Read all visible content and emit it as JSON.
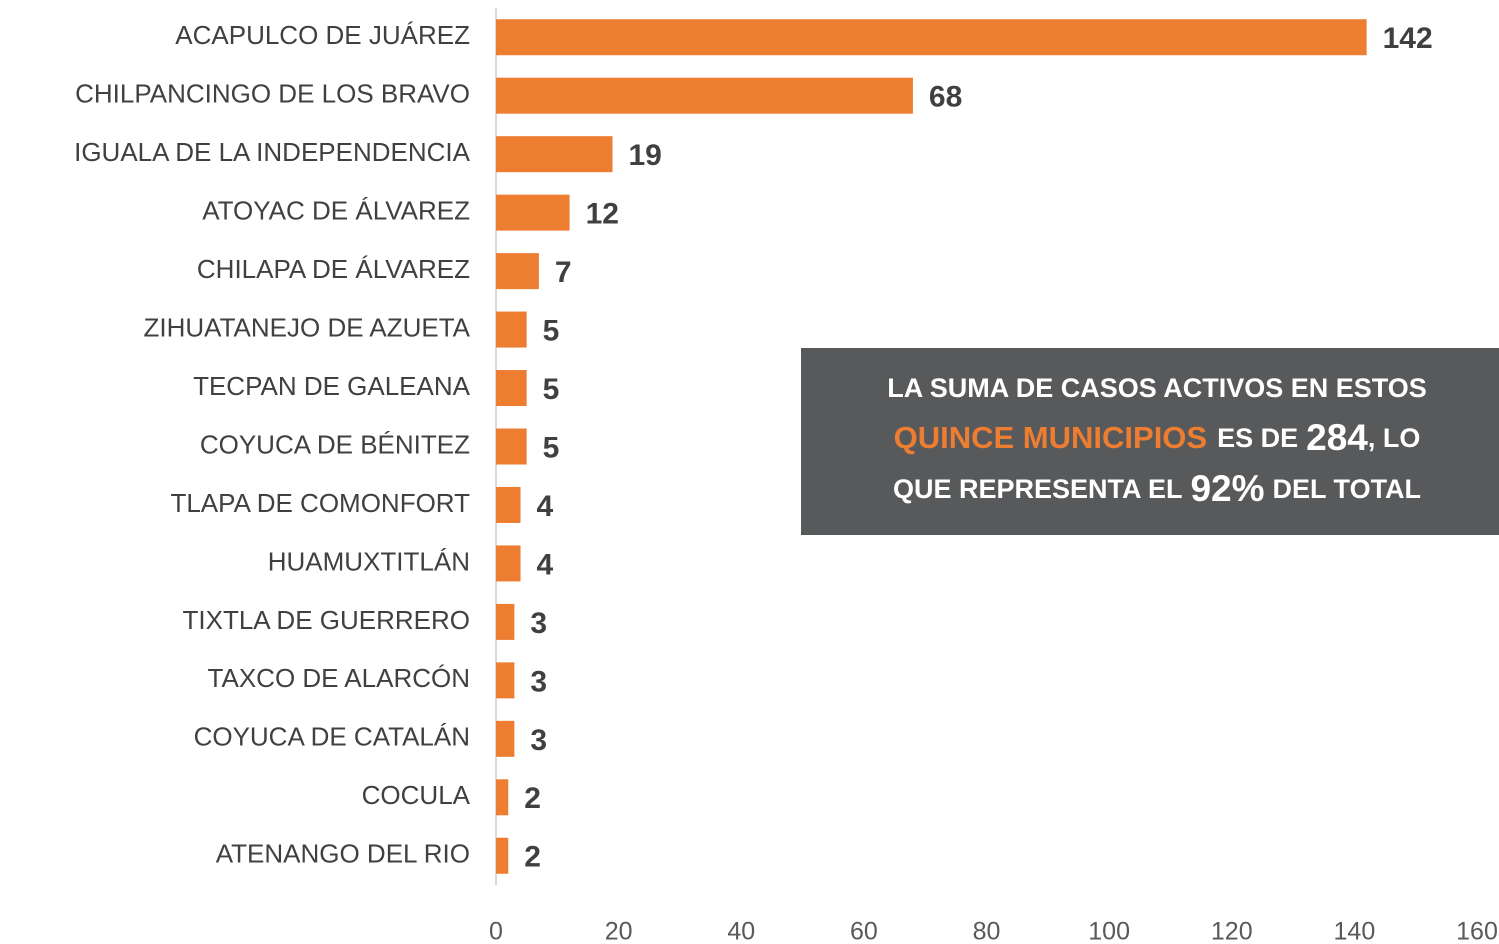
{
  "chart_data": {
    "type": "bar",
    "orientation": "horizontal",
    "categories": [
      "ACAPULCO DE JUÁREZ",
      "CHILPANCINGO DE LOS BRAVO",
      "IGUALA DE LA INDEPENDENCIA",
      "ATOYAC DE ÁLVAREZ",
      "CHILAPA DE ÁLVAREZ",
      "ZIHUATANEJO DE AZUETA",
      "TECPAN DE GALEANA",
      "COYUCA DE BÉNITEZ",
      "TLAPA DE COMONFORT",
      "HUAMUXTITLÁN",
      "TIXTLA DE GUERRERO",
      "TAXCO DE ALARCÓN",
      "COYUCA DE CATALÁN",
      "COCULA",
      "ATENANGO DEL RIO"
    ],
    "values": [
      142,
      68,
      19,
      12,
      7,
      5,
      5,
      5,
      4,
      4,
      3,
      3,
      3,
      2,
      2
    ],
    "color": "#ed7d31",
    "xlim": [
      0,
      160
    ],
    "xticks": [
      0,
      20,
      40,
      60,
      80,
      100,
      120,
      140,
      160
    ],
    "annotation": {
      "line1": "LA SUMA DE CASOS ACTIVOS EN ESTOS",
      "highlight": "QUINCE MUNICIPIOS",
      "mid": "ES DE",
      "total": "284",
      "tail": ", LO",
      "line3": "QUE REPRESENTA EL",
      "percent": "92%",
      "end": "DEL TOTAL"
    }
  }
}
